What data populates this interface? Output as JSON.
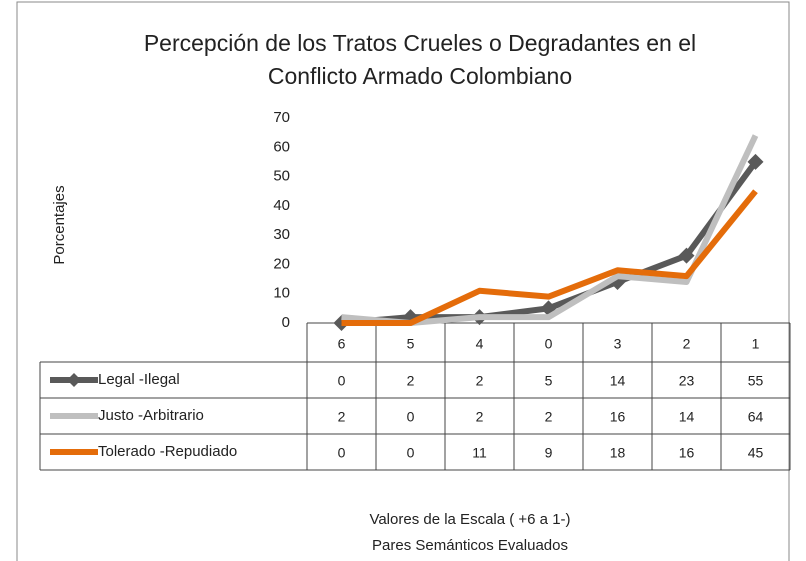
{
  "chart_data": {
    "type": "line",
    "title": [
      "Percepción de los Tratos Crueles o Degradantes en el",
      "Conflicto Armado Colombiano"
    ],
    "y_label": "Porcentajes",
    "x_label": [
      "Valores de la Escala ( +6 a 1-)",
      "Pares Semánticos Evaluados"
    ],
    "categories": [
      "6",
      "5",
      "4",
      "0",
      "3",
      "2",
      "1"
    ],
    "series": [
      {
        "name": "Legal -Ilegal",
        "color": "#595959",
        "marker": "diamond",
        "values": [
          0,
          2,
          2,
          5,
          14,
          23,
          55
        ]
      },
      {
        "name": "Justo  -Arbitrario",
        "color": "#bfbfbf",
        "values": [
          2,
          0,
          2,
          2,
          16,
          14,
          64
        ]
      },
      {
        "name": "Tolerado -Repudiado",
        "color": "#e46c0a",
        "values": [
          0,
          0,
          11,
          9,
          18,
          16,
          45
        ]
      }
    ],
    "ylim": [
      0,
      70
    ],
    "yticks": [
      0,
      10,
      20,
      30,
      40,
      50,
      60,
      70
    ],
    "grid": false,
    "data_table": true
  }
}
